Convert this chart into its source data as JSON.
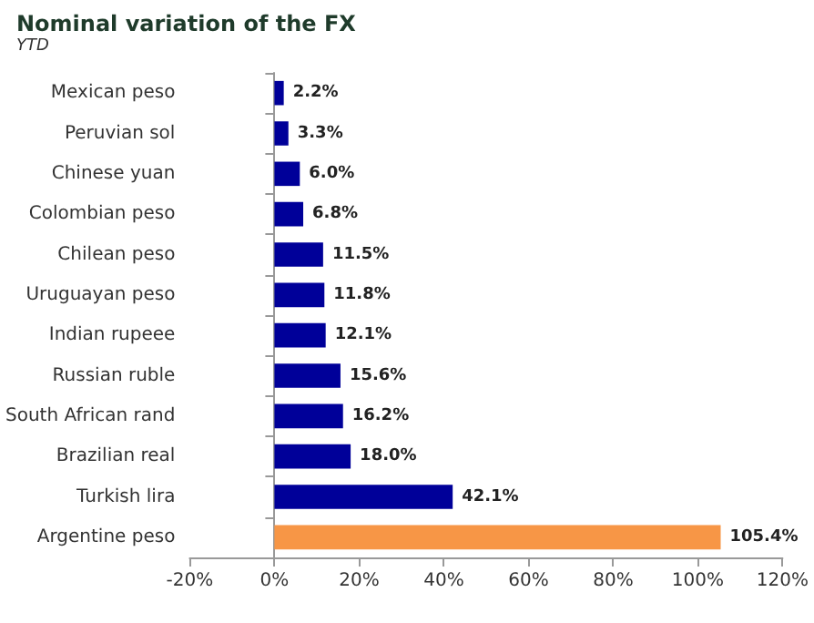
{
  "chart_data": {
    "type": "bar",
    "orientation": "horizontal",
    "title": "Nominal variation of the FX",
    "subtitle": "YTD",
    "categories": [
      "Mexican peso",
      "Peruvian sol",
      "Chinese yuan",
      "Colombian peso",
      "Chilean peso",
      "Uruguayan peso",
      "Indian rupeee",
      "Russian ruble",
      "South African rand",
      "Brazilian real",
      "Turkish lira",
      "Argentine peso"
    ],
    "values": [
      2.2,
      3.3,
      6.0,
      6.8,
      11.5,
      11.8,
      12.1,
      15.6,
      16.2,
      18.0,
      42.1,
      105.4
    ],
    "value_labels": [
      "2.2%",
      "3.3%",
      "6.0%",
      "6.8%",
      "11.5%",
      "11.8%",
      "12.1%",
      "15.6%",
      "16.2%",
      "18.0%",
      "42.1%",
      "105.4%"
    ],
    "colors": [
      "#000099",
      "#000099",
      "#000099",
      "#000099",
      "#000099",
      "#000099",
      "#000099",
      "#000099",
      "#000099",
      "#000099",
      "#000099",
      "#f79646"
    ],
    "xlim": [
      -20,
      120
    ],
    "xticks": [
      {
        "value": -20,
        "label": "-20%"
      },
      {
        "value": 0,
        "label": "0%"
      },
      {
        "value": 20,
        "label": "20%"
      },
      {
        "value": 40,
        "label": "40%"
      },
      {
        "value": 60,
        "label": "60%"
      },
      {
        "value": 80,
        "label": "80%"
      },
      {
        "value": 100,
        "label": "100%"
      },
      {
        "value": 120,
        "label": "120%"
      }
    ],
    "tick_labels": true
  }
}
